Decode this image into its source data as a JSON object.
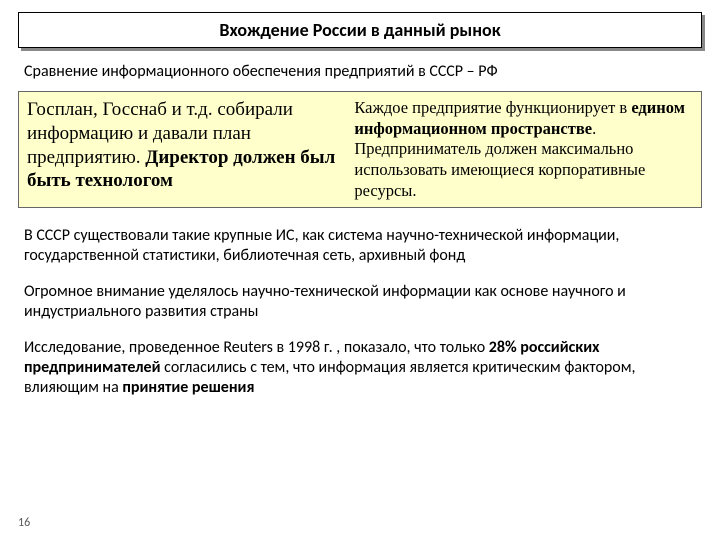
{
  "title": "Вхождение России в данный рынок",
  "subtitle": "Сравнение информационного обеспечения предприятий в СССР – РФ",
  "left_html": "Госплан, Госснаб и т.д. собирали информацию и давали план предприятию. <b>Директор должен был быть технологом</b>",
  "right_html": "Каждое предприятие функционирует в <b>едином информационном пространстве</b>. Предприниматель должен максимально использовать имеющиеся корпоративные ресурсы.",
  "p1": "В СССР существовали такие крупные ИС, как система научно-технической информации, государственной статистики, библиотечная сеть, архивный фонд",
  "p2": "Огромное внимание уделялось научно-технической информации как основе научного и индустриального развития страны",
  "p3_html": "Исследование, проведенное Reuters в 1998 г. , показало, что только <b>28% российских предпринимателей</b> согласились с тем, что информация является критическим фактором, влияющим на <b>принятие решения</b>",
  "page": "16",
  "colors": {
    "highlight_bg": "#ffffcc",
    "shadow": "#888888",
    "border": "#000000"
  }
}
